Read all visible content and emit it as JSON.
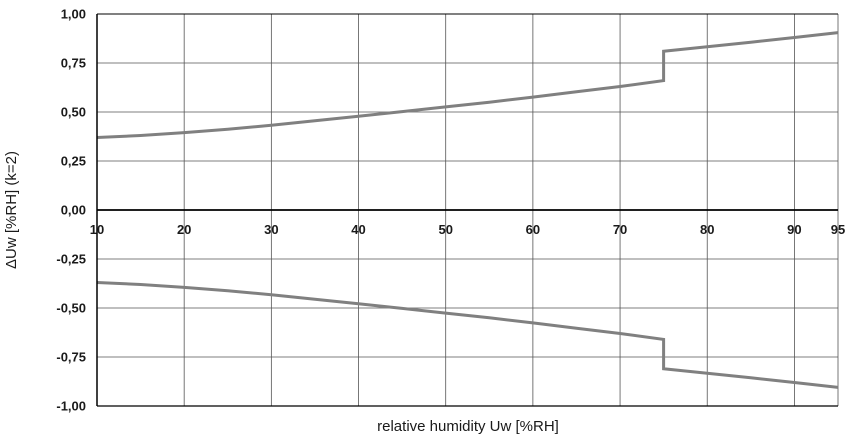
{
  "chart_data": {
    "type": "line",
    "title": "",
    "xlabel": "relative humidity Uw [%RH]",
    "ylabel": "ΔUw [%RH] (k=2)",
    "xlim": [
      10,
      95
    ],
    "ylim": [
      -1.0,
      1.0
    ],
    "x_ticks": [
      10,
      20,
      30,
      40,
      50,
      60,
      70,
      80,
      90,
      95
    ],
    "x_tick_labels": [
      "10",
      "20",
      "30",
      "40",
      "50",
      "60",
      "70",
      "80",
      "90",
      "95"
    ],
    "y_ticks": [
      1.0,
      0.75,
      0.5,
      0.25,
      0.0,
      -0.25,
      -0.5,
      -0.75,
      -1.0
    ],
    "y_tick_labels": [
      "1,00",
      "0,75",
      "0,50",
      "0,25",
      "0,00",
      "-0,25",
      "-0,50",
      "-0,75",
      "-1,00"
    ],
    "grid": true,
    "legend": "none",
    "series_color": "#808080",
    "series": [
      {
        "x": [
          10,
          15,
          20,
          25,
          30,
          35,
          40,
          45,
          50,
          55,
          60,
          65,
          70,
          75,
          75,
          80,
          85,
          90,
          95
        ],
        "y": [
          0.37,
          0.38,
          0.395,
          0.412,
          0.432,
          0.455,
          0.478,
          0.502,
          0.526,
          0.55,
          0.576,
          0.603,
          0.63,
          0.66,
          0.81,
          0.833,
          0.856,
          0.88,
          0.905
        ]
      },
      {
        "x": [
          10,
          15,
          20,
          25,
          30,
          35,
          40,
          45,
          50,
          55,
          60,
          65,
          70,
          75,
          75,
          80,
          85,
          90,
          95
        ],
        "y": [
          -0.37,
          -0.38,
          -0.395,
          -0.412,
          -0.432,
          -0.455,
          -0.478,
          -0.502,
          -0.526,
          -0.55,
          -0.576,
          -0.603,
          -0.63,
          -0.66,
          -0.81,
          -0.833,
          -0.856,
          -0.88,
          -0.905
        ]
      }
    ]
  }
}
